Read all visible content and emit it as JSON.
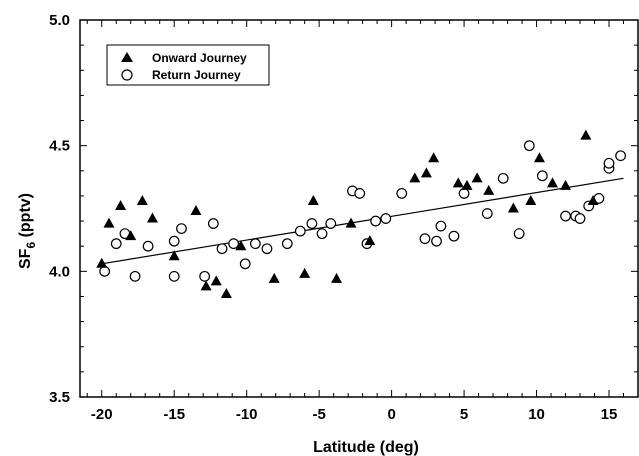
{
  "chart_data": {
    "type": "scatter",
    "xlabel": "Latitude (deg)",
    "ylabel_main": "SF",
    "ylabel_sub": "6",
    "ylabel_unit": " (pptv)",
    "xlim": [
      -21.5,
      17.0
    ],
    "ylim": [
      3.5,
      5.0
    ],
    "x_ticks": [
      -20,
      -15,
      -10,
      -5,
      0,
      5,
      10,
      15
    ],
    "x_tick_labels": [
      "-20",
      "-15",
      "-10",
      "-5",
      "0",
      "5",
      "10",
      "15"
    ],
    "y_ticks": [
      3.5,
      4.0,
      4.5,
      5.0
    ],
    "y_tick_labels": [
      "3.5",
      "4.0",
      "4.5",
      "5.0"
    ],
    "legend_position": "top-left",
    "series": [
      {
        "name": "Onward Journey",
        "marker": "filled-triangle",
        "points": [
          [
            -20.0,
            4.03
          ],
          [
            -19.5,
            4.19
          ],
          [
            -18.7,
            4.26
          ],
          [
            -18.0,
            4.14
          ],
          [
            -17.2,
            4.28
          ],
          [
            -16.5,
            4.21
          ],
          [
            -15.0,
            4.06
          ],
          [
            -13.5,
            4.24
          ],
          [
            -12.8,
            3.94
          ],
          [
            -12.1,
            3.96
          ],
          [
            -11.4,
            3.91
          ],
          [
            -10.4,
            4.1
          ],
          [
            -8.1,
            3.97
          ],
          [
            -6.0,
            3.99
          ],
          [
            -5.4,
            4.28
          ],
          [
            -3.8,
            3.97
          ],
          [
            -2.8,
            4.19
          ],
          [
            -1.5,
            4.12
          ],
          [
            1.6,
            4.37
          ],
          [
            2.4,
            4.39
          ],
          [
            2.9,
            4.45
          ],
          [
            4.6,
            4.35
          ],
          [
            5.2,
            4.34
          ],
          [
            5.9,
            4.37
          ],
          [
            6.7,
            4.32
          ],
          [
            8.4,
            4.25
          ],
          [
            9.6,
            4.28
          ],
          [
            10.2,
            4.45
          ],
          [
            11.1,
            4.35
          ],
          [
            12.0,
            4.34
          ],
          [
            13.4,
            4.54
          ],
          [
            13.9,
            4.28
          ]
        ]
      },
      {
        "name": "Return Journey",
        "marker": "open-circle",
        "points": [
          [
            -19.8,
            4.0
          ],
          [
            -19.0,
            4.11
          ],
          [
            -18.4,
            4.15
          ],
          [
            -17.7,
            3.98
          ],
          [
            -16.8,
            4.1
          ],
          [
            -15.0,
            4.12
          ],
          [
            -14.5,
            4.17
          ],
          [
            -15.0,
            3.98
          ],
          [
            -12.9,
            3.98
          ],
          [
            -12.3,
            4.19
          ],
          [
            -11.7,
            4.09
          ],
          [
            -10.9,
            4.11
          ],
          [
            -10.1,
            4.03
          ],
          [
            -9.4,
            4.11
          ],
          [
            -8.6,
            4.09
          ],
          [
            -7.2,
            4.11
          ],
          [
            -6.3,
            4.16
          ],
          [
            -5.5,
            4.19
          ],
          [
            -4.8,
            4.15
          ],
          [
            -4.2,
            4.19
          ],
          [
            -2.7,
            4.32
          ],
          [
            -2.2,
            4.31
          ],
          [
            -1.7,
            4.11
          ],
          [
            -1.1,
            4.2
          ],
          [
            -0.4,
            4.21
          ],
          [
            0.7,
            4.31
          ],
          [
            2.3,
            4.13
          ],
          [
            3.1,
            4.12
          ],
          [
            3.4,
            4.18
          ],
          [
            4.3,
            4.14
          ],
          [
            5.0,
            4.31
          ],
          [
            6.6,
            4.23
          ],
          [
            7.7,
            4.37
          ],
          [
            8.8,
            4.15
          ],
          [
            9.5,
            4.5
          ],
          [
            10.4,
            4.38
          ],
          [
            12.0,
            4.22
          ],
          [
            12.7,
            4.22
          ],
          [
            13.0,
            4.21
          ],
          [
            13.6,
            4.26
          ],
          [
            14.3,
            4.29
          ],
          [
            15.0,
            4.41
          ],
          [
            15.0,
            4.43
          ],
          [
            15.8,
            4.46
          ]
        ]
      }
    ],
    "trendline": {
      "type": "linear",
      "x": [
        -20.0,
        16.0
      ],
      "y": [
        4.03,
        4.37
      ]
    }
  }
}
